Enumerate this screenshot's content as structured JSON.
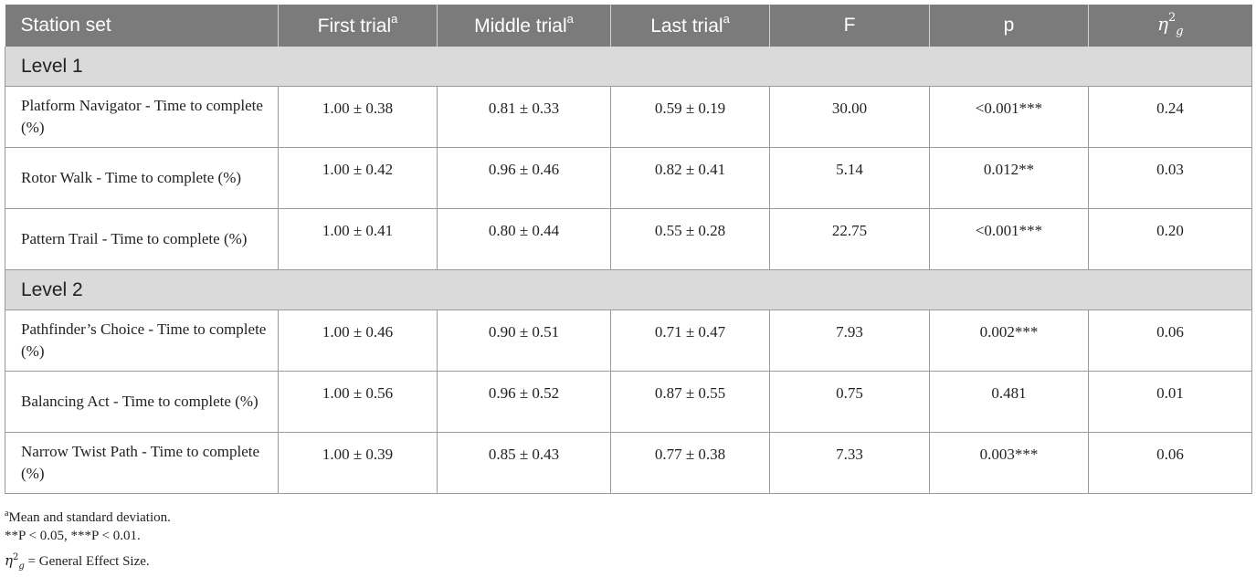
{
  "table": {
    "headers": [
      "Station set",
      "First trial",
      "Middle trial",
      "Last trial",
      "F",
      "p",
      "η"
    ],
    "header_sup": {
      "trial": "a",
      "eta_sup": "2",
      "eta_sub": "g"
    },
    "groups": [
      {
        "label": "Level 1",
        "rows": [
          [
            "Platform Navigator - Time to complete (%)",
            "1.00 ± 0.38",
            "0.81 ± 0.33",
            "0.59 ± 0.19",
            "30.00",
            "<0.001***",
            "0.24"
          ],
          [
            "Rotor Walk - Time to complete (%)",
            "1.00 ± 0.42",
            "0.96 ± 0.46",
            "0.82 ± 0.41",
            "5.14",
            "0.012**",
            "0.03"
          ],
          [
            "Pattern Trail - Time to complete (%)",
            "1.00 ± 0.41",
            "0.80 ± 0.44",
            "0.55 ± 0.28",
            "22.75",
            "<0.001***",
            "0.20"
          ]
        ]
      },
      {
        "label": "Level 2",
        "rows": [
          [
            "Pathfinder’s Choice - Time to complete (%)",
            "1.00 ± 0.46",
            "0.90 ± 0.51",
            "0.71 ± 0.47",
            "7.93",
            "0.002***",
            "0.06"
          ],
          [
            "Balancing Act - Time to complete (%)",
            "1.00 ± 0.56",
            "0.96 ± 0.52",
            "0.87 ± 0.55",
            "0.75",
            "0.481",
            "0.01"
          ],
          [
            "Narrow Twist Path - Time to complete (%)",
            "1.00 ± 0.39",
            "0.85 ± 0.43",
            "0.77 ± 0.38",
            "7.33",
            "0.003***",
            "0.06"
          ]
        ]
      }
    ]
  },
  "footnotes": {
    "a_mark": "a",
    "a_text": "Mean and standard deviation.",
    "sig_text": "**P < 0.05, ***P < 0.01.",
    "eta_text": " = General Effect Size."
  }
}
